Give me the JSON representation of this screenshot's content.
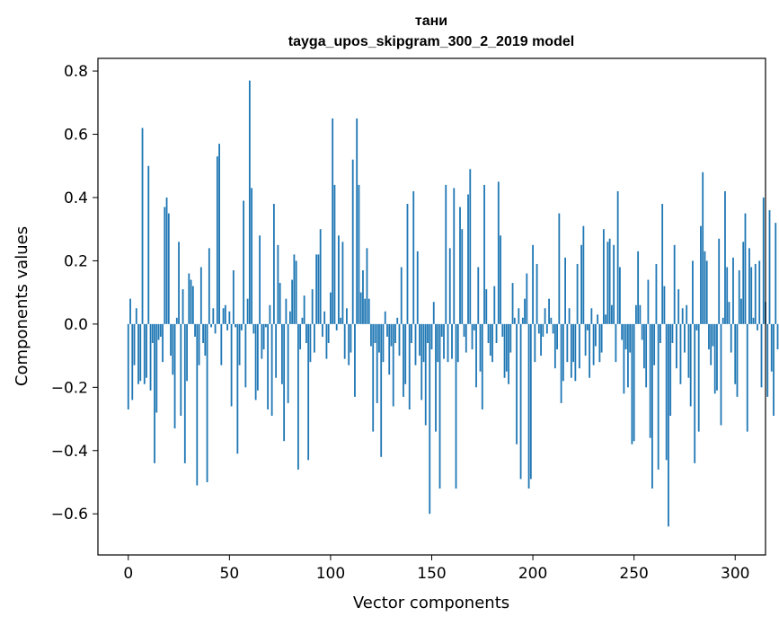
{
  "chart_data": {
    "type": "bar",
    "title_line1": "тани",
    "title_line2": "tayga_upos_skipgram_300_2_2019 model",
    "xlabel": "Vector components",
    "ylabel": "Components values",
    "xlim": [
      -15,
      315
    ],
    "ylim": [
      -0.73,
      0.84
    ],
    "xticks": [
      0,
      50,
      100,
      150,
      200,
      250,
      300
    ],
    "xtick_labels": [
      "0",
      "50",
      "100",
      "150",
      "200",
      "250",
      "300"
    ],
    "yticks": [
      -0.6,
      -0.4,
      -0.2,
      0.0,
      0.2,
      0.4,
      0.6,
      0.8
    ],
    "ytick_labels": [
      "−0.6",
      "−0.4",
      "−0.2",
      "0.0",
      "0.2",
      "0.4",
      "0.6",
      "0.8"
    ],
    "bar_color": "#1f77b4",
    "grid": false,
    "values": [
      -0.27,
      0.08,
      -0.24,
      -0.13,
      0.05,
      -0.19,
      -0.18,
      0.62,
      -0.19,
      -0.17,
      0.5,
      -0.21,
      -0.06,
      -0.44,
      -0.28,
      -0.05,
      -0.04,
      -0.12,
      0.37,
      0.4,
      0.35,
      -0.1,
      -0.16,
      -0.33,
      0.02,
      0.26,
      -0.29,
      0.11,
      -0.44,
      -0.18,
      0.16,
      0.14,
      0.12,
      -0.04,
      -0.51,
      -0.13,
      0.18,
      -0.06,
      -0.1,
      -0.5,
      0.24,
      -0.01,
      0.05,
      -0.03,
      0.53,
      0.57,
      -0.13,
      0.05,
      0.06,
      -0.02,
      0.04,
      -0.26,
      0.17,
      -0.01,
      -0.41,
      -0.13,
      -0.02,
      0.39,
      -0.2,
      0.08,
      0.77,
      0.43,
      -0.03,
      -0.24,
      -0.21,
      0.28,
      -0.11,
      -0.08,
      -0.01,
      -0.27,
      0.06,
      -0.29,
      0.38,
      -0.17,
      0.25,
      0.13,
      -0.19,
      -0.37,
      0.08,
      -0.25,
      0.04,
      0.14,
      0.22,
      0.2,
      -0.46,
      -0.08,
      0.02,
      0.09,
      -0.06,
      -0.43,
      -0.12,
      0.11,
      -0.09,
      0.22,
      0.22,
      0.3,
      -0.04,
      0.04,
      -0.11,
      -0.06,
      0.1,
      0.65,
      0.44,
      -0.02,
      0.28,
      0.02,
      0.26,
      -0.11,
      0.05,
      -0.13,
      -0.09,
      0.52,
      -0.23,
      0.65,
      0.44,
      0.1,
      0.17,
      0.08,
      0.24,
      0.08,
      -0.07,
      -0.34,
      -0.06,
      -0.25,
      -0.09,
      -0.42,
      -0.12,
      0.04,
      -0.04,
      -0.16,
      -0.07,
      -0.26,
      -0.06,
      0.02,
      -0.1,
      0.18,
      -0.23,
      -0.19,
      0.38,
      -0.27,
      -0.06,
      0.42,
      -0.13,
      0.23,
      -0.1,
      -0.24,
      -0.12,
      -0.32,
      -0.06,
      -0.6,
      -0.08,
      0.07,
      -0.34,
      -0.12,
      -0.52,
      -0.04,
      -0.11,
      0.44,
      -0.12,
      0.24,
      -0.11,
      0.43,
      -0.52,
      -0.12,
      0.37,
      0.3,
      -0.04,
      -0.09,
      0.41,
      0.49,
      -0.08,
      -0.02,
      -0.2,
      0.18,
      -0.15,
      -0.27,
      0.44,
      0.11,
      -0.06,
      -0.1,
      -0.12,
      0.12,
      -0.06,
      0.45,
      0.28,
      -0.04,
      -0.17,
      -0.15,
      -0.19,
      -0.09,
      0.13,
      0.02,
      -0.38,
      0.05,
      -0.49,
      0.02,
      0.08,
      0.16,
      -0.52,
      -0.49,
      0.25,
      -0.12,
      0.19,
      -0.03,
      -0.1,
      -0.04,
      0.05,
      -0.03,
      0.08,
      0.02,
      -0.03,
      -0.14,
      -0.08,
      0.35,
      -0.25,
      -0.18,
      0.21,
      -0.12,
      0.05,
      -0.17,
      -0.12,
      -0.18,
      0.19,
      -0.14,
      0.25,
      0.31,
      -0.1,
      -0.02,
      -0.17,
      0.05,
      -0.13,
      -0.07,
      0.03,
      -0.12,
      -0.09,
      0.3,
      0.03,
      0.26,
      0.27,
      0.06,
      0.25,
      -0.12,
      0.42,
      0.18,
      -0.05,
      -0.22,
      -0.08,
      -0.2,
      -0.09,
      -0.38,
      -0.37,
      0.06,
      0.23,
      0.06,
      -0.05,
      -0.14,
      -0.2,
      0.14,
      -0.36,
      -0.52,
      -0.13,
      0.19,
      -0.46,
      -0.06,
      0.38,
      0.12,
      -0.43,
      -0.64,
      -0.29,
      -0.06,
      0.25,
      -0.14,
      0.11,
      -0.19,
      0.05,
      -0.09,
      0.06,
      -0.17,
      -0.26,
      0.2,
      -0.44,
      -0.02,
      -0.34,
      0.31,
      0.48,
      0.23,
      0.2,
      -0.08,
      -0.13,
      -0.07,
      -0.22,
      -0.21,
      0.27,
      -0.32,
      0.02,
      0.42,
      0.18,
      0.07,
      -0.09,
      0.21,
      -0.19,
      -0.23,
      0.17,
      0.08,
      0.26,
      0.35,
      -0.34,
      0.24,
      0.18,
      0.02,
      0.19,
      -0.02,
      0.2,
      -0.2,
      0.4,
      0.07,
      -0.23,
      0.36,
      -0.15,
      -0.29,
      0.32,
      -0.08
    ]
  }
}
